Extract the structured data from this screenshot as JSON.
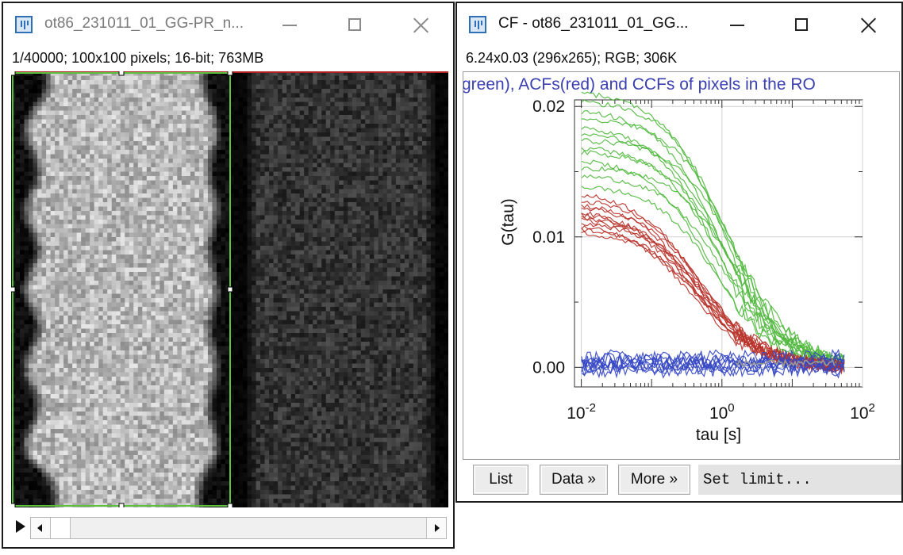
{
  "left_window": {
    "title": "ot86_231011_01_GG-PR_n...",
    "info": "1/40000; 100x100 pixels; 16-bit; 763MB",
    "roi_color": "#5cc040"
  },
  "right_window": {
    "title": "CF - ot86_231011_01_GG...",
    "info": "6.24x0.03   (296x265); RGB; 306K",
    "plot_title": "green), ACFs(red) and CCFs of pixels in the RO",
    "buttons": {
      "list": "List",
      "data": "Data »",
      "more": "More »"
    },
    "limit_text": "Set limit..."
  },
  "chart_data": {
    "type": "line",
    "xlabel": "tau [s]",
    "ylabel": "G(tau)",
    "x_scale": "log",
    "xlim": [
      0.008,
      100
    ],
    "ylim": [
      -0.0015,
      0.0205
    ],
    "grid": true,
    "x_ticks": [
      {
        "value": 0.01,
        "base": "10",
        "exp": "-2"
      },
      {
        "value": 1,
        "base": "10",
        "exp": "0"
      },
      {
        "value": 100,
        "base": "10",
        "exp": "2"
      }
    ],
    "y_ticks": [
      {
        "value": 0.0,
        "label": "0.00"
      },
      {
        "value": 0.01,
        "label": "0.01"
      },
      {
        "value": 0.02,
        "label": "0.02"
      }
    ],
    "series": [
      {
        "color": "#4fb83c",
        "g0": [
          0.0212,
          0.0205,
          0.0198,
          0.0192,
          0.0186,
          0.018,
          0.0175,
          0.017,
          0.0166,
          0.016,
          0.0154,
          0.0148,
          0.014
        ],
        "tau_d": [
          1.0,
          1.2,
          0.9,
          1.4,
          0.8,
          1.1,
          1.6,
          0.95,
          1.3,
          0.7,
          1.5,
          1.05,
          0.85
        ]
      },
      {
        "color": "#b8322a",
        "g0": [
          0.0135,
          0.013,
          0.0127,
          0.0124,
          0.0121,
          0.0119,
          0.0117,
          0.0115,
          0.0112,
          0.011,
          0.0108,
          0.0105
        ],
        "tau_d": [
          0.45,
          0.5,
          0.42,
          0.55,
          0.4,
          0.48,
          0.52,
          0.44,
          0.6,
          0.38,
          0.47,
          0.5
        ]
      },
      {
        "color": "#3547c4",
        "g0": [
          0.0008,
          0.0005,
          0.0003,
          0.0001,
          -0.0001,
          0.0006,
          0.0002,
          -0.0002,
          0.0004
        ],
        "tau_d": [
          1,
          1,
          1,
          1,
          1,
          1,
          1,
          1,
          1
        ]
      }
    ]
  }
}
